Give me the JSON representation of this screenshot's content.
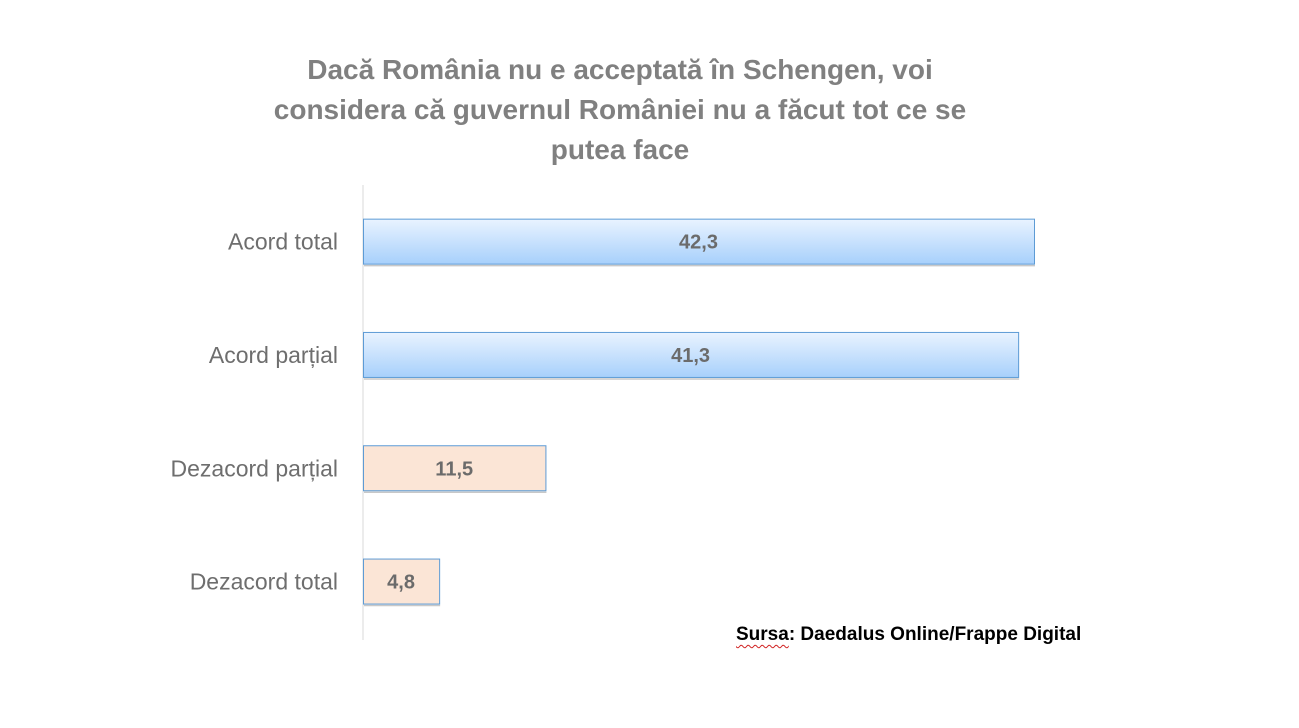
{
  "chart_data": {
    "type": "bar",
    "orientation": "horizontal",
    "title_lines": [
      "Dacă România nu e acceptată în Schengen, voi",
      "considera că guvernul României nu a făcut tot ce se",
      "putea face"
    ],
    "categories": [
      "Acord total",
      "Acord parțial",
      "Dezacord parțial",
      "Dezacord total"
    ],
    "values": [
      42.3,
      41.3,
      11.5,
      4.8
    ],
    "value_labels": [
      "42,3",
      "41,3",
      "11,5",
      "4,8"
    ],
    "bar_colors": [
      "blue",
      "blue",
      "peach",
      "peach"
    ],
    "xlim": [
      0,
      55
    ],
    "grid": false,
    "legend": "none"
  },
  "source": {
    "label": "Sursa",
    "text": ": Daedalus Online/Frappe Digital"
  },
  "colors": {
    "title": "#808080",
    "category_label": "#6e6e6e",
    "value_label": "#6b6b6b",
    "axis": "#d9d9d9",
    "blue_top": "#e9f3ff",
    "blue_bottom": "#a7d0fb",
    "blue_border": "#5d9bd5",
    "peach_fill": "#fbe5d6",
    "peach_border": "#5d9bd5"
  }
}
